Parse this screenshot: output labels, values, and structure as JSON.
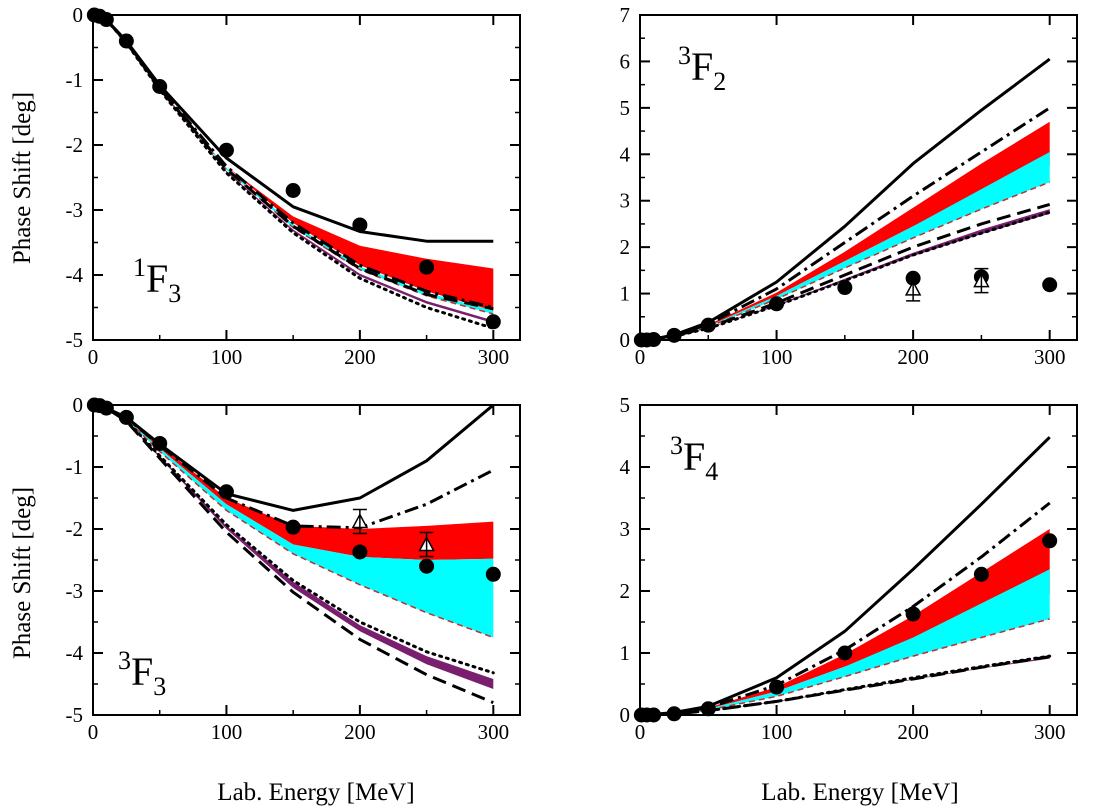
{
  "figure": {
    "y_axis_title": "Phase Shift  [deg]",
    "x_axis_title": "Lab. Energy  [MeV]"
  },
  "colors": {
    "band_upper": "#ff0000",
    "band_lower": "#00ffff",
    "band_purple": "#7a1f6e",
    "line": "#000000",
    "dashed_band_edge": "#c03030"
  },
  "chart_data": [
    {
      "type": "line",
      "panel": "1F3",
      "label": {
        "pre": "1",
        "main": "F",
        "post": "3"
      },
      "xlim": [
        0,
        320
      ],
      "ylim": [
        -5,
        0
      ],
      "xticks": [
        0,
        100,
        200,
        300
      ],
      "yticks": [
        -5,
        -4,
        -3,
        -2,
        -1,
        0
      ],
      "x_tick_labels": [
        "0",
        "100",
        "200",
        "300"
      ],
      "y_tick_labels": [
        "-5",
        "-4",
        "-3",
        "-2",
        "-1",
        "0"
      ],
      "x": [
        0,
        10,
        25,
        50,
        100,
        150,
        200,
        250,
        300
      ],
      "band_upper": {
        "top": [
          0,
          -0.07,
          -0.4,
          -1.1,
          -2.33,
          -3.1,
          -3.55,
          -3.75,
          -3.9
        ],
        "bottom": [
          0,
          -0.07,
          -0.4,
          -1.1,
          -2.33,
          -3.2,
          -3.85,
          -4.25,
          -4.55
        ]
      },
      "band_lower": {
        "top": [
          0,
          -0.07,
          -0.41,
          -1.12,
          -2.35,
          -3.22,
          -3.87,
          -4.27,
          -4.55
        ],
        "bottom": [
          0,
          -0.07,
          -0.42,
          -1.14,
          -2.38,
          -3.27,
          -3.92,
          -4.32,
          -4.6
        ]
      },
      "band_purple": {
        "top": [
          0,
          -0.07,
          -0.42,
          -1.14,
          -2.4,
          -3.3,
          -3.98,
          -4.4,
          -4.7
        ],
        "bottom": [
          0,
          -0.07,
          -0.43,
          -1.15,
          -2.42,
          -3.33,
          -4.02,
          -4.44,
          -4.74
        ]
      },
      "lines": [
        {
          "style": "solid",
          "y": [
            0,
            -0.07,
            -0.4,
            -1.08,
            -2.2,
            -2.95,
            -3.33,
            -3.48,
            -3.48
          ]
        },
        {
          "style": "dashdot",
          "y": [
            0,
            -0.07,
            -0.41,
            -1.11,
            -2.33,
            -3.2,
            -3.85,
            -4.25,
            -4.5
          ]
        },
        {
          "style": "dashed",
          "y": [
            0,
            -0.07,
            -0.42,
            -1.13,
            -2.37,
            -3.25,
            -3.9,
            -4.3,
            -4.52
          ]
        },
        {
          "style": "dotted",
          "y": [
            0,
            -0.07,
            -0.43,
            -1.15,
            -2.43,
            -3.35,
            -4.05,
            -4.5,
            -4.82
          ]
        }
      ],
      "points": {
        "x": [
          1,
          5,
          10,
          25,
          50,
          100,
          150,
          200,
          250,
          300
        ],
        "y": [
          0,
          -0.02,
          -0.07,
          -0.4,
          -1.1,
          -2.08,
          -2.7,
          -3.23,
          -3.88,
          -4.72
        ]
      },
      "triangles": {
        "x": [],
        "y": []
      }
    },
    {
      "type": "line",
      "panel": "3F2",
      "label": {
        "pre": "3",
        "main": "F",
        "post": "2"
      },
      "xlim": [
        0,
        320
      ],
      "ylim": [
        0,
        7
      ],
      "xticks": [
        0,
        100,
        200,
        300
      ],
      "yticks": [
        0,
        1,
        2,
        3,
        4,
        5,
        6,
        7
      ],
      "x_tick_labels": [
        "0",
        "100",
        "200",
        "300"
      ],
      "y_tick_labels": [
        "0",
        "1",
        "2",
        "3",
        "4",
        "5",
        "6",
        "7"
      ],
      "x": [
        0,
        10,
        25,
        50,
        100,
        150,
        200,
        250,
        300
      ],
      "band_upper": {
        "top": [
          0,
          0.02,
          0.1,
          0.33,
          1.02,
          1.9,
          2.85,
          3.8,
          4.7
        ],
        "bottom": [
          0,
          0.02,
          0.09,
          0.3,
          0.95,
          1.7,
          2.45,
          3.15,
          3.75
        ]
      },
      "band_lower": {
        "top": [
          0,
          0.02,
          0.09,
          0.3,
          0.95,
          1.7,
          2.45,
          3.25,
          4.05
        ],
        "bottom": [
          0,
          0.02,
          0.08,
          0.28,
          0.88,
          1.55,
          2.2,
          2.82,
          3.4
        ]
      },
      "band_purple": {
        "top": [
          0,
          0.02,
          0.08,
          0.26,
          0.76,
          1.32,
          1.88,
          2.38,
          2.82
        ],
        "bottom": [
          0,
          0.02,
          0.08,
          0.25,
          0.73,
          1.27,
          1.81,
          2.28,
          2.72
        ]
      },
      "lines": [
        {
          "style": "solid",
          "y": [
            0,
            0.02,
            0.11,
            0.38,
            1.25,
            2.45,
            3.8,
            4.95,
            6.05
          ]
        },
        {
          "style": "dashdot",
          "y": [
            0,
            0.02,
            0.1,
            0.34,
            1.1,
            2.1,
            3.1,
            4.05,
            5.0
          ]
        },
        {
          "style": "dashed",
          "y": [
            0,
            0.02,
            0.09,
            0.27,
            0.8,
            1.4,
            2.0,
            2.5,
            2.92
          ]
        },
        {
          "style": "dotted",
          "y": [
            0,
            0.02,
            0.08,
            0.25,
            0.74,
            1.28,
            1.83,
            2.3,
            2.75
          ]
        }
      ],
      "points": {
        "x": [
          1,
          5,
          10,
          25,
          50,
          100,
          150,
          200,
          250,
          300
        ],
        "y": [
          0,
          0,
          0.01,
          0.1,
          0.32,
          0.78,
          1.13,
          1.33,
          1.36,
          1.19
        ]
      },
      "triangles": {
        "x": [
          200,
          250
        ],
        "y": [
          1.1,
          1.28
        ]
      }
    },
    {
      "type": "line",
      "panel": "3F3",
      "label": {
        "pre": "3",
        "main": "F",
        "post": "3"
      },
      "xlim": [
        0,
        320
      ],
      "ylim": [
        -5,
        0
      ],
      "xticks": [
        0,
        100,
        200,
        300
      ],
      "yticks": [
        -5,
        -4,
        -3,
        -2,
        -1,
        0
      ],
      "x_tick_labels": [
        "0",
        "100",
        "200",
        "300"
      ],
      "y_tick_labels": [
        "-5",
        "-4",
        "-3",
        "-2",
        "-1",
        "0"
      ],
      "x": [
        0,
        10,
        25,
        50,
        100,
        150,
        200,
        250,
        300
      ],
      "band_upper": {
        "top": [
          0,
          -0.05,
          -0.2,
          -0.65,
          -1.5,
          -1.95,
          -2.0,
          -1.95,
          -1.88
        ],
        "bottom": [
          0,
          -0.05,
          -0.22,
          -0.7,
          -1.6,
          -2.25,
          -2.45,
          -2.5,
          -2.48
        ]
      },
      "band_lower": {
        "top": [
          0,
          -0.05,
          -0.22,
          -0.7,
          -1.6,
          -2.25,
          -2.45,
          -2.5,
          -2.48
        ],
        "bottom": [
          0,
          -0.05,
          -0.23,
          -0.75,
          -1.7,
          -2.4,
          -2.9,
          -3.35,
          -3.75
        ]
      },
      "band_purple": {
        "top": [
          0,
          -0.05,
          -0.25,
          -0.82,
          -1.95,
          -2.85,
          -3.55,
          -4.05,
          -4.42
        ],
        "bottom": [
          0,
          -0.05,
          -0.26,
          -0.85,
          -2.0,
          -2.95,
          -3.65,
          -4.18,
          -4.58
        ]
      },
      "lines": [
        {
          "style": "solid",
          "y": [
            0,
            -0.05,
            -0.2,
            -0.63,
            -1.43,
            -1.7,
            -1.5,
            -0.9,
            0.0
          ]
        },
        {
          "style": "dashdot",
          "y": [
            0,
            -0.05,
            -0.21,
            -0.65,
            -1.5,
            -1.95,
            -1.98,
            -1.6,
            -1.05
          ]
        },
        {
          "style": "dashed",
          "y": [
            0,
            -0.05,
            -0.26,
            -0.86,
            -2.05,
            -3.02,
            -3.78,
            -4.35,
            -4.8
          ]
        },
        {
          "style": "dotted",
          "y": [
            0,
            -0.05,
            -0.25,
            -0.82,
            -1.93,
            -2.83,
            -3.5,
            -3.98,
            -4.32
          ]
        }
      ],
      "points": {
        "x": [
          1,
          5,
          10,
          25,
          50,
          100,
          150,
          200,
          250,
          300
        ],
        "y": [
          0,
          -0.01,
          -0.05,
          -0.2,
          -0.62,
          -1.4,
          -1.97,
          -2.37,
          -2.6,
          -2.73
        ]
      },
      "triangles": {
        "x": [
          200,
          250
        ],
        "y": [
          -1.88,
          -2.25
        ]
      }
    },
    {
      "type": "line",
      "panel": "3F4",
      "label": {
        "pre": "3",
        "main": "F",
        "post": "4"
      },
      "xlim": [
        0,
        320
      ],
      "ylim": [
        0,
        5
      ],
      "xticks": [
        0,
        100,
        200,
        300
      ],
      "yticks": [
        0,
        1,
        2,
        3,
        4,
        5
      ],
      "x_tick_labels": [
        "0",
        "100",
        "200",
        "300"
      ],
      "y_tick_labels": [
        "0",
        "1",
        "2",
        "3",
        "4",
        "5"
      ],
      "x": [
        0,
        10,
        25,
        50,
        100,
        150,
        200,
        250,
        300
      ],
      "band_upper": {
        "top": [
          0,
          0.01,
          0.03,
          0.12,
          0.45,
          0.98,
          1.6,
          2.3,
          3.0
        ],
        "bottom": [
          0,
          0.01,
          0.03,
          0.1,
          0.38,
          0.78,
          1.2,
          1.6,
          1.95
        ]
      },
      "band_lower": {
        "top": [
          0,
          0.01,
          0.03,
          0.1,
          0.38,
          0.78,
          1.25,
          1.8,
          2.35
        ],
        "bottom": [
          0,
          0.01,
          0.02,
          0.08,
          0.3,
          0.62,
          0.95,
          1.25,
          1.55
        ]
      },
      "band_purple": {
        "top": [
          0,
          0.01,
          0.02,
          0.07,
          0.22,
          0.4,
          0.58,
          0.76,
          0.93
        ],
        "bottom": [
          0,
          0.01,
          0.02,
          0.07,
          0.21,
          0.39,
          0.57,
          0.75,
          0.91
        ]
      },
      "lines": [
        {
          "style": "solid",
          "y": [
            0,
            0.01,
            0.04,
            0.14,
            0.6,
            1.35,
            2.35,
            3.4,
            4.48
          ]
        },
        {
          "style": "dashdot",
          "y": [
            0,
            0.01,
            0.03,
            0.12,
            0.48,
            1.05,
            1.75,
            2.55,
            3.42
          ]
        },
        {
          "style": "dashed",
          "y": [
            0,
            0.01,
            0.02,
            0.07,
            0.22,
            0.4,
            0.58,
            0.77,
            0.94
          ]
        },
        {
          "style": "dotted",
          "y": [
            0,
            0.01,
            0.02,
            0.07,
            0.22,
            0.41,
            0.6,
            0.78,
            0.95
          ]
        }
      ],
      "points": {
        "x": [
          1,
          5,
          10,
          25,
          50,
          100,
          150,
          200,
          250,
          300
        ],
        "y": [
          0,
          0,
          0,
          0.02,
          0.1,
          0.45,
          1.0,
          1.63,
          2.27,
          2.81
        ]
      },
      "triangles": {
        "x": [],
        "y": []
      }
    }
  ]
}
